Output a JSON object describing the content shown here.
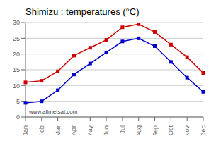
{
  "chart_data": {
    "type": "line",
    "title": "Shimizu : temperatures (°C)",
    "categories": [
      "Jan",
      "Feb",
      "Mar",
      "Apr",
      "May",
      "Jun",
      "Jul",
      "Aug",
      "Sep",
      "Oct",
      "Nov",
      "Dec"
    ],
    "series": [
      {
        "color": "#cc0000",
        "marker": "square",
        "values": [
          11.0,
          11.5,
          14.5,
          19.5,
          22.0,
          24.5,
          28.5,
          29.5,
          27.0,
          23.0,
          19.0,
          14.0
        ]
      },
      {
        "color": "#0000cc",
        "marker": "square",
        "values": [
          4.5,
          5.0,
          8.5,
          13.5,
          17.0,
          20.5,
          24.0,
          25.0,
          22.5,
          17.5,
          12.5,
          8.0
        ]
      }
    ],
    "ylim": [
      0,
      30
    ],
    "yticks": [
      0,
      5,
      10,
      15,
      20,
      25,
      30
    ],
    "grid": true,
    "annotation": "www.allmetsat.com"
  }
}
